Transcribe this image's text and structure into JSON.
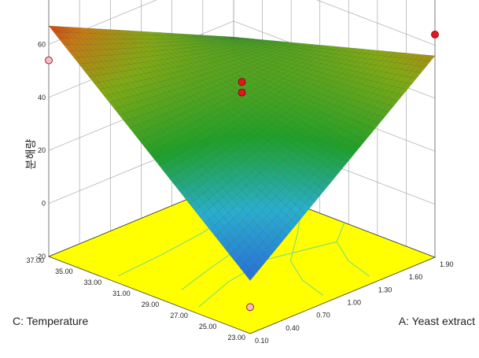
{
  "chart_data": {
    "type": "surface-3d",
    "title": "",
    "xlabel": "A: Yeast extract",
    "ylabel": "C: Temperature",
    "zlabel": "분해량",
    "x_ticks": [
      "0.10",
      "0.40",
      "0.70",
      "1.00",
      "1.30",
      "1.60",
      "1.90"
    ],
    "y_ticks": [
      "23.00",
      "25.00",
      "27.00",
      "29.00",
      "31.00",
      "33.00",
      "35.00",
      "37.00"
    ],
    "z_ticks": [
      "-20",
      "0",
      "20",
      "40",
      "60",
      "80"
    ],
    "xlim": [
      0.1,
      1.9
    ],
    "ylim": [
      23,
      37
    ],
    "zlim": [
      -20,
      80
    ],
    "surface": {
      "corners": [
        {
          "x": 0.1,
          "y": 23,
          "z": 0
        },
        {
          "x": 1.9,
          "y": 23,
          "z": 56
        },
        {
          "x": 0.1,
          "y": 37,
          "z": 67
        },
        {
          "x": 1.9,
          "y": 37,
          "z": 34
        }
      ],
      "center": {
        "x": 1.0,
        "y": 30,
        "z": 38
      }
    },
    "points": [
      {
        "x": 0.1,
        "y": 23,
        "z": -10,
        "color": "#f7bcc4"
      },
      {
        "x": 1.9,
        "y": 23,
        "z": 64,
        "color": "#e8141c"
      },
      {
        "x": 0.1,
        "y": 37,
        "z": 54,
        "color": "#f7bcc4"
      },
      {
        "x": 1.0,
        "y": 30,
        "z": 46,
        "color": "#e8141c"
      },
      {
        "x": 1.0,
        "y": 30,
        "z": 42,
        "color": "#e8141c"
      }
    ],
    "floor_color": "#ffff00",
    "contour_color": "#7fdc7a",
    "grid": true
  }
}
